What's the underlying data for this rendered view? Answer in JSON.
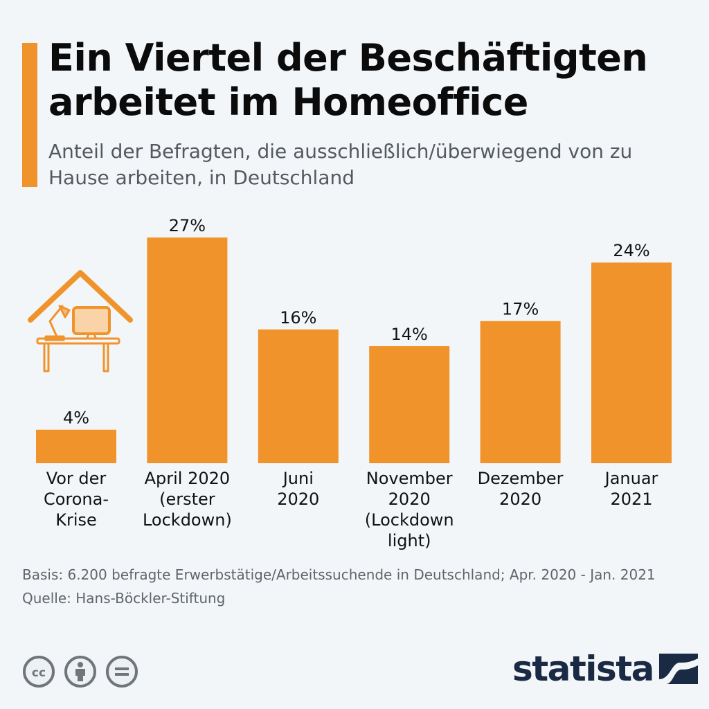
{
  "title": "Ein Viertel der Beschäftigten arbeitet im Homeoffice",
  "subtitle": "Anteil der Befragten, die ausschließlich/überwiegend von zu Hause arbeiten, in Deutschland",
  "colors": {
    "bar": "#f0932b",
    "accent": "#f0932b",
    "illustration": "#f0932b",
    "logo": "#1a2a44"
  },
  "chart_data": {
    "type": "bar",
    "categories": [
      [
        "Vor der",
        "Corona-",
        "Krise"
      ],
      [
        "April 2020",
        "(erster",
        "Lockdown)"
      ],
      [
        "Juni",
        "2020"
      ],
      [
        "November",
        "2020",
        "(Lockdown",
        "light)"
      ],
      [
        "Dezember",
        "2020"
      ],
      [
        "Januar",
        "2021"
      ]
    ],
    "values": [
      4,
      27,
      16,
      14,
      17,
      24
    ],
    "value_labels": [
      "4%",
      "27%",
      "16%",
      "14%",
      "17%",
      "24%"
    ],
    "unit": "%",
    "ylim": [
      0,
      30
    ],
    "grid": false,
    "legend": "none"
  },
  "notes": {
    "basis": "Basis: 6.200 befragte Erwerbstätige/Arbeitssuchende in Deutschland; Apr. 2020 - Jan. 2021",
    "source": "Quelle: Hans-Böckler-Stiftung"
  },
  "license_icons": [
    "cc-icon",
    "attribution-icon",
    "no-derivatives-icon"
  ],
  "logo": {
    "text": "statista"
  }
}
